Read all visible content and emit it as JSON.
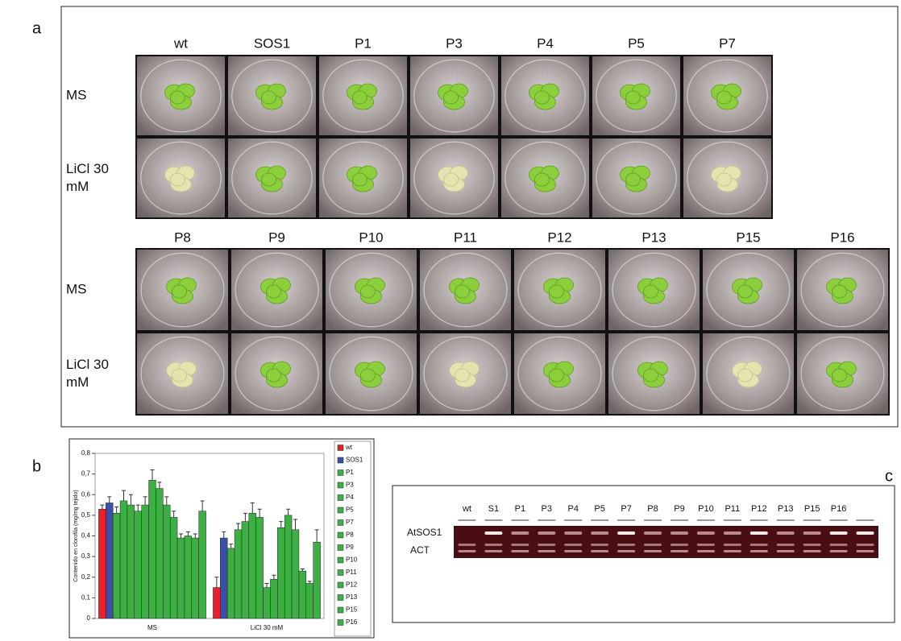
{
  "panel_labels": [
    "a",
    "b",
    "c"
  ],
  "photos": {
    "top": {
      "columns": [
        "wt",
        "SOS1",
        "P1",
        "P3",
        "P4",
        "P5",
        "P7"
      ],
      "rows": [
        "MS",
        "LiCl 30 mM"
      ]
    },
    "bottom": {
      "columns": [
        "P8",
        "P9",
        "P10",
        "P11",
        "P12",
        "P13",
        "P15",
        "P16"
      ],
      "rows": [
        "MS",
        "LiCl 30 mM"
      ]
    }
  },
  "chart_data": {
    "type": "bar",
    "y_label": "Contenido en clorofila (mg/mg tejido)",
    "categories": [
      "MS",
      "LiCl 30 mM"
    ],
    "ylim": [
      0,
      0.8
    ],
    "yticks": [
      0,
      {
        "value": 0.1,
        "label": "0,1"
      },
      {
        "value": 0.2,
        "label": "0,2"
      },
      {
        "value": 0.3,
        "label": "0,3"
      },
      {
        "value": 0.4,
        "label": "0,4"
      },
      {
        "value": 0.5,
        "label": "0,5"
      },
      {
        "value": 0.6,
        "label": "0,6"
      },
      {
        "value": 0.7,
        "label": "0,7"
      },
      {
        "value": 0.8,
        "label": "0,8"
      }
    ],
    "series": [
      {
        "name": "wt",
        "color": "#e8212b",
        "values": [
          0.53,
          0.15
        ],
        "errors": [
          0.02,
          0.05
        ]
      },
      {
        "name": "SOS1",
        "color": "#3a4fa8",
        "values": [
          0.56,
          0.39
        ],
        "errors": [
          0.03,
          0.03
        ]
      },
      {
        "name": "P1",
        "color": "#3cb043",
        "values": [
          0.51,
          0.34
        ],
        "errors": [
          0.03,
          0.02
        ]
      },
      {
        "name": "P3",
        "color": "#3cb043",
        "values": [
          0.57,
          0.43
        ],
        "errors": [
          0.05,
          0.03
        ]
      },
      {
        "name": "P4",
        "color": "#3cb043",
        "values": [
          0.55,
          0.47
        ],
        "errors": [
          0.05,
          0.04
        ]
      },
      {
        "name": "P5",
        "color": "#3cb043",
        "values": [
          0.52,
          0.51
        ],
        "errors": [
          0.03,
          0.05
        ]
      },
      {
        "name": "P7",
        "color": "#3cb043",
        "values": [
          0.55,
          0.49
        ],
        "errors": [
          0.04,
          0.04
        ]
      },
      {
        "name": "P8",
        "color": "#3cb043",
        "values": [
          0.67,
          0.15
        ],
        "errors": [
          0.05,
          0.02
        ]
      },
      {
        "name": "P9",
        "color": "#3cb043",
        "values": [
          0.63,
          0.19
        ],
        "errors": [
          0.03,
          0.02
        ]
      },
      {
        "name": "P10",
        "color": "#3cb043",
        "values": [
          0.55,
          0.44
        ],
        "errors": [
          0.04,
          0.03
        ]
      },
      {
        "name": "P11",
        "color": "#3cb043",
        "values": [
          0.49,
          0.5
        ],
        "errors": [
          0.03,
          0.03
        ]
      },
      {
        "name": "P12",
        "color": "#3cb043",
        "values": [
          0.39,
          0.43
        ],
        "errors": [
          0.02,
          0.05
        ]
      },
      {
        "name": "P13",
        "color": "#3cb043",
        "values": [
          0.4,
          0.23
        ],
        "errors": [
          0.02,
          0.01
        ]
      },
      {
        "name": "P15",
        "color": "#3cb043",
        "values": [
          0.39,
          0.17
        ],
        "errors": [
          0.02,
          0.01
        ]
      },
      {
        "name": "P16",
        "color": "#3cb043",
        "values": [
          0.52,
          0.37
        ],
        "errors": [
          0.05,
          0.06
        ]
      }
    ]
  },
  "gel": {
    "lanes": [
      "wt",
      "S1",
      "P1",
      "P3",
      "P4",
      "P5",
      "P7",
      "P8",
      "P9",
      "P10",
      "P11",
      "P12",
      "P13",
      "P15",
      "P16"
    ],
    "bands": [
      "AtSOS1",
      "ACT"
    ]
  }
}
